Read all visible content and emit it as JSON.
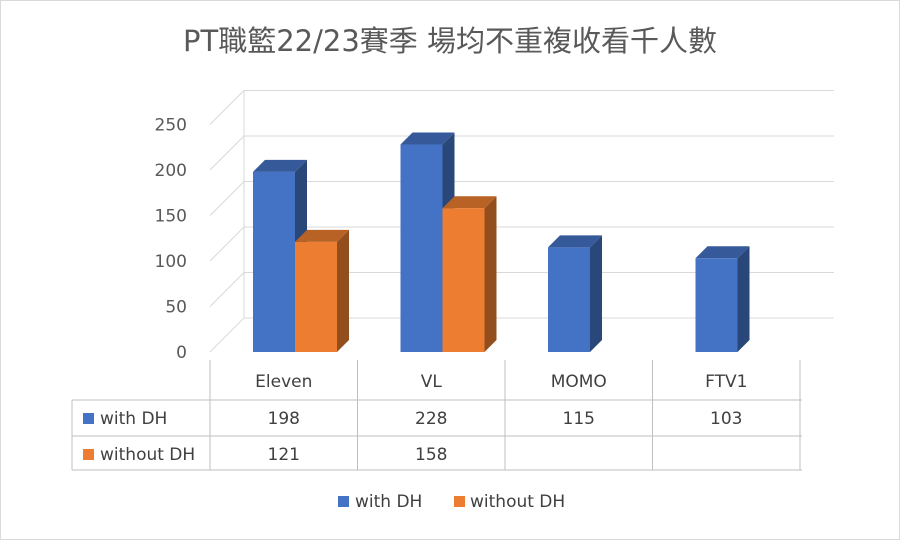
{
  "chart_data": {
    "type": "bar",
    "subtype": "3d-clustered-column-with-data-table",
    "title": "PT職籃22/23賽季 場均不重複收看千人數",
    "categories": [
      "Eleven",
      "VL",
      "MOMO",
      "FTV1"
    ],
    "series": [
      {
        "name": "with DH",
        "values": [
          198,
          228,
          115,
          103
        ],
        "display": [
          "198",
          "228",
          "115",
          "103"
        ],
        "color": "#4472C4"
      },
      {
        "name": "without DH",
        "values": [
          121,
          158,
          null,
          null
        ],
        "display": [
          "121",
          "158",
          "",
          ""
        ],
        "color": "#ED7D31"
      }
    ],
    "ylim": [
      0,
      250
    ],
    "yticks": [
      0,
      50,
      100,
      150,
      200,
      250
    ],
    "ytick_labels": [
      "0",
      "50",
      "100",
      "150",
      "200",
      "250"
    ],
    "grid": true,
    "legend": "bottom",
    "xlabel": "",
    "ylabel": ""
  }
}
